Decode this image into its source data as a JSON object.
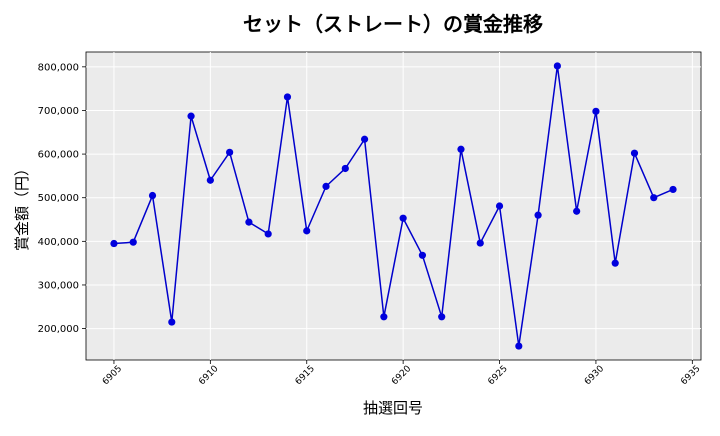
{
  "chart_data": {
    "type": "line",
    "title": "セット（ストレート）の賞金推移",
    "xlabel": "抽選回号",
    "ylabel": "賞金額（円）",
    "x": [
      6905,
      6906,
      6907,
      6908,
      6909,
      6910,
      6911,
      6912,
      6913,
      6914,
      6915,
      6916,
      6917,
      6918,
      6919,
      6920,
      6921,
      6922,
      6923,
      6924,
      6925,
      6926,
      6927,
      6928,
      6929,
      6930,
      6931,
      6932,
      6933,
      6934
    ],
    "series": [
      {
        "values": [
          395000,
          398000,
          505000,
          215000,
          687000,
          540000,
          604000,
          444000,
          417000,
          731000,
          424000,
          526000,
          567000,
          634000,
          227000,
          453000,
          368000,
          227000,
          611000,
          396000,
          481000,
          160000,
          460000,
          802000,
          469000,
          698000,
          350000,
          602000,
          500000,
          519000
        ]
      }
    ],
    "xticks": [
      "6905",
      "6910",
      "6915",
      "6920",
      "6925",
      "6930",
      "6935"
    ],
    "yticks": [
      "200,000",
      "300,000",
      "400,000",
      "500,000",
      "600,000",
      "700,000",
      "800,000"
    ],
    "xlim": [
      6903.55,
      6935.45
    ],
    "ylim": [
      128000,
      834000
    ],
    "grid": true,
    "line_color": "#0000cc",
    "marker_color": "#0000dd",
    "plot_background": "#ebebeb"
  }
}
